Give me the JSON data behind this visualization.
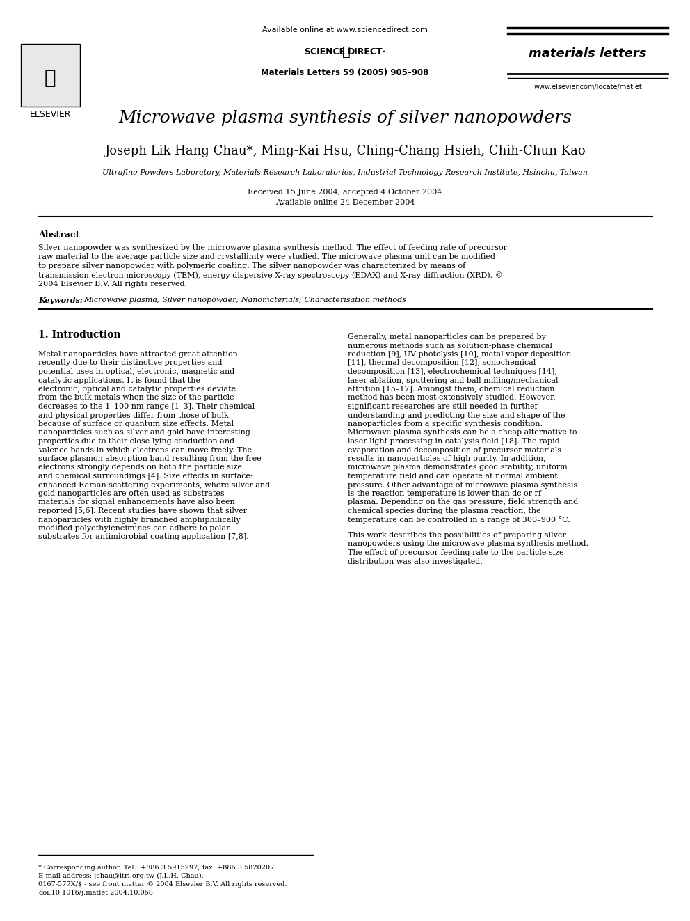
{
  "title": "Microwave plasma synthesis of silver nanopowders",
  "authors": "Joseph Lik Hang Chau*, Ming-Kai Hsu, Ching-Chang Hsieh, Chih-Chun Kao",
  "affiliation": "Ultrafine Powders Laboratory, Materials Research Laboratories, Industrial Technology Research Institute, Hsinchu, Taiwan",
  "received": "Received 15 June 2004; accepted 4 October 2004",
  "available": "Available online 24 December 2004",
  "journal_header": "Available online at www.sciencedirect.com",
  "journal_name": "materials letters",
  "journal_ref": "Materials Letters 59 (2005) 905–908",
  "journal_url": "www.elsevier.com/locate/matlet",
  "elsevier_text": "ELSEVIER",
  "abstract_title": "Abstract",
  "abstract_text": "Silver nanopowder was synthesized by the microwave plasma synthesis method. The effect of feeding rate of precursor raw material to the average particle size and crystallinity were studied. The microwave plasma unit can be modified to prepare silver nanopowder with polymeric coating. The silver nanopowder was characterized by means of transmission electron microscopy (TEM), energy dispersive X-ray spectroscopy (EDAX) and X-ray diffraction (XRD).\n© 2004 Elsevier B.V. All rights reserved.",
  "keywords_label": "Keywords:",
  "keywords": "Microwave plasma; Silver nanopowder; Nanomaterials; Characterisation methods",
  "section1_title": "1. Introduction",
  "col1_para1": "Metal nanoparticles have attracted great attention recently due to their distinctive properties and potential uses in optical, electronic, magnetic and catalytic applications. It is found that the electronic, optical and catalytic properties deviate from the bulk metals when the size of the particle decreases to the 1–100 nm range [1–3]. Their chemical and physical properties differ from those of bulk because of surface or quantum size effects. Metal nanoparticles such as silver and gold have interesting properties due to their close-lying conduction and valence bands in which electrons can move freely. The surface plasmon absorption band resulting from the free electrons strongly depends on both the particle size and chemical surroundings [4]. Size effects in surface-enhanced Raman scattering experiments, where silver and gold nanoparticles are often used as substrates materials for signal enhancements have also been reported [5,6]. Recent studies have shown that silver nanoparticles with highly branched amphiphilically modified polyethyleneimines can adhere to polar substrates for antimicrobial coating application [7,8].",
  "col2_para1": "Generally, metal nanoparticles can be prepared by numerous methods such as solution-phase chemical reduction [9], UV photolysis [10], metal vapor deposition [11], thermal decomposition [12], sonochemical decomposition [13], electrochemical techniques [14], laser ablation, sputtering and ball milling/mechanical attrition [15–17]. Amongst them, chemical reduction method has been most extensively studied. However, significant researches are still needed in further understanding and predicting the size and shape of the nanoparticles from a specific synthesis condition. Microwave plasma synthesis can be a cheap alternative to laser light processing in catalysis field [18]. The rapid evaporation and decomposition of precursor materials results in nanoparticles of high purity. In addition, microwave plasma demonstrates good stability, uniform temperature field and can operate at normal ambient pressure. Other advantage of microwave plasma synthesis is the reaction temperature is lower than dc or rf plasma. Depending on the gas pressure, field strength and chemical species during the plasma reaction, the temperature can be controlled in a range of 300–900 °C.",
  "col2_para2": "This work describes the possibilities of preparing silver nanopowders using the microwave plasma synthesis method. The effect of precursor feeding rate to the particle size distribution was also investigated.",
  "footnote1": "* Corresponding author. Tel.: +886 3 5915297; fax: +886 3 5820207.",
  "footnote2": "E-mail address: jchau@itri.org.tw (J.L.H. Chau).",
  "footnote3": "0167-577X/$ - see front matter © 2004 Elsevier B.V. All rights reserved.",
  "footnote4": "doi:10.1016/j.matlet.2004.10.068",
  "bg_color": "#ffffff",
  "text_color": "#000000",
  "link_color": "#0000cc"
}
